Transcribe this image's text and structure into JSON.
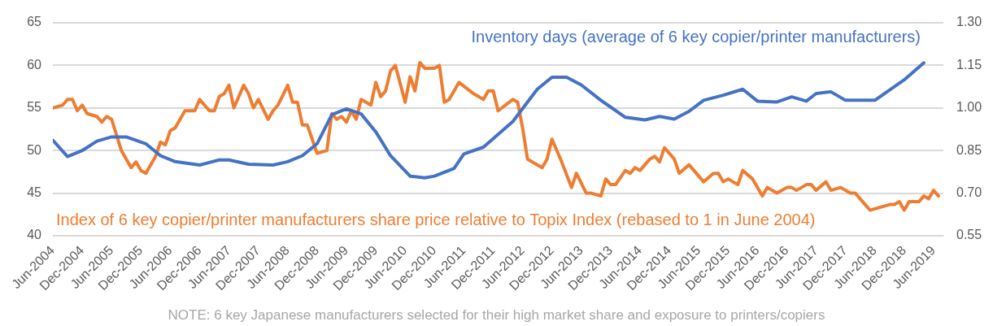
{
  "chart_data": {
    "type": "line",
    "xlim": [
      "2004-06",
      "2019-08"
    ],
    "xticks": [
      {
        "value": "2004-06",
        "label": "Jun-2004"
      },
      {
        "value": "2004-12",
        "label": "Dec-2004"
      },
      {
        "value": "2005-06",
        "label": "Jun-2005"
      },
      {
        "value": "2005-12",
        "label": "Dec-2005"
      },
      {
        "value": "2006-06",
        "label": "Jun-2006"
      },
      {
        "value": "2006-12",
        "label": "Dec-2006"
      },
      {
        "value": "2007-06",
        "label": "Jun-2007"
      },
      {
        "value": "2007-12",
        "label": "Dec-2007"
      },
      {
        "value": "2008-06",
        "label": "Jun-2008"
      },
      {
        "value": "2008-12",
        "label": "Dec-2008"
      },
      {
        "value": "2009-06",
        "label": "Jun-2009"
      },
      {
        "value": "2009-12",
        "label": "Dec-2009"
      },
      {
        "value": "2010-06",
        "label": "Jun-2010"
      },
      {
        "value": "2010-12",
        "label": "Dec-2010"
      },
      {
        "value": "2011-06",
        "label": "Jun-2011"
      },
      {
        "value": "2011-12",
        "label": "Dec-2011"
      },
      {
        "value": "2012-06",
        "label": "Jun-2012"
      },
      {
        "value": "2012-12",
        "label": "Dec-2012"
      },
      {
        "value": "2013-06",
        "label": "Jun-2013"
      },
      {
        "value": "2013-12",
        "label": "Dec-2013"
      },
      {
        "value": "2014-06",
        "label": "Jun-2014"
      },
      {
        "value": "2014-12",
        "label": "Dec-2014"
      },
      {
        "value": "2015-06",
        "label": "Jun-2015"
      },
      {
        "value": "2015-12",
        "label": "Dec-2015"
      },
      {
        "value": "2016-06",
        "label": "Jun-2016"
      },
      {
        "value": "2016-12",
        "label": "Dec-2016"
      },
      {
        "value": "2017-06",
        "label": "Jun-2017"
      },
      {
        "value": "2017-12",
        "label": "Dec-2017"
      },
      {
        "value": "2018-06",
        "label": "Jun-2018"
      },
      {
        "value": "2018-12",
        "label": "Dec-2018"
      },
      {
        "value": "2019-06",
        "label": "Jun-2019"
      }
    ],
    "ylim": [
      40,
      65
    ],
    "yticks": [
      40,
      45,
      50,
      55,
      60,
      65
    ],
    "y2lim": [
      0.55,
      1.3
    ],
    "y2ticks": [
      0.55,
      {
        "value": 0.7,
        "label": "0.70"
      },
      0.85,
      {
        "value": 1,
        "label": "1.00"
      },
      1.15,
      {
        "value": 1.3,
        "label": "1.30"
      }
    ],
    "grid": "y",
    "legend": false,
    "marker": "none",
    "line_style": "solid",
    "annotations": [
      "NOTE: 6 key Japanese manufacturers selected for their high market share and exposure to printers/copiers"
    ],
    "series": [
      {
        "name": "Inventory days (average of 6 key copier/printer manufacturers)",
        "color": "#4472c4",
        "x": [
          "2004-06",
          "2004-09",
          "2004-12",
          "2005-03",
          "2005-06",
          "2005-09",
          "2006-01",
          "2006-04",
          "2006-07",
          "2006-12",
          "2007-04",
          "2007-06",
          "2007-10",
          "2008-03",
          "2008-06",
          "2008-09",
          "2008-12",
          "2009-03",
          "2009-06",
          "2009-09",
          "2009-12",
          "2010-03",
          "2010-07",
          "2010-10",
          "2010-12",
          "2011-04",
          "2011-06",
          "2011-10",
          "2012-01",
          "2012-04",
          "2012-09",
          "2012-12",
          "2013-03",
          "2013-06",
          "2013-10",
          "2013-12",
          "2014-03",
          "2014-07",
          "2014-10",
          "2015-01",
          "2015-04",
          "2015-07",
          "2015-11",
          "2016-03",
          "2016-06",
          "2016-10",
          "2017-01",
          "2017-04",
          "2017-06",
          "2017-09",
          "2017-12",
          "2018-06",
          "2018-12",
          "2019-04"
        ],
        "values": [
          51.2,
          49.3,
          50.0,
          51.1,
          51.6,
          51.6,
          50.8,
          49.4,
          48.7,
          48.3,
          48.9,
          48.9,
          48.4,
          48.3,
          48.7,
          49.4,
          50.8,
          54.2,
          54.9,
          54.3,
          52.2,
          49.4,
          47.0,
          46.8,
          47.0,
          47.9,
          49.6,
          50.4,
          51.9,
          53.4,
          57.2,
          58.6,
          58.6,
          57.7,
          55.9,
          55.1,
          53.9,
          53.6,
          54.0,
          53.7,
          54.6,
          55.9,
          56.5,
          57.2,
          55.8,
          55.7,
          56.3,
          55.8,
          56.7,
          56.9,
          55.9,
          55.9,
          58.3,
          60.3
        ]
      },
      {
        "name": "Index of 6 key copier/printer manufacturers share price relative to Topix Index (rebased to 1 in June 2004)",
        "color": "#ed7d31",
        "axis": "y2",
        "x": [
          "2004-06",
          "2004-08",
          "2004-09",
          "2004-10",
          "2004-11",
          "2004-12",
          "2005-01",
          "2005-03",
          "2005-04",
          "2005-05",
          "2005-06",
          "2005-08",
          "2005-10",
          "2005-11",
          "2005-12",
          "2006-01",
          "2006-02",
          "2006-03",
          "2006-04",
          "2006-05",
          "2006-06",
          "2006-07",
          "2006-09",
          "2006-11",
          "2006-12",
          "2007-02",
          "2007-03",
          "2007-04",
          "2007-05",
          "2007-06",
          "2007-07",
          "2007-09",
          "2007-10",
          "2007-11",
          "2007-12",
          "2008-02",
          "2008-03",
          "2008-04",
          "2008-06",
          "2008-07",
          "2008-08",
          "2008-09",
          "2008-10",
          "2008-12",
          "2009-02",
          "2009-03",
          "2009-04",
          "2009-05",
          "2009-06",
          "2009-07",
          "2009-08",
          "2009-09",
          "2009-11",
          "2009-12",
          "2010-01",
          "2010-02",
          "2010-03",
          "2010-04",
          "2010-06",
          "2010-07",
          "2010-08",
          "2010-09",
          "2010-10",
          "2010-12",
          "2011-01",
          "2011-02",
          "2011-03",
          "2011-05",
          "2011-08",
          "2011-10",
          "2011-11",
          "2011-12",
          "2012-01",
          "2012-04",
          "2012-05",
          "2012-06",
          "2012-07",
          "2012-08",
          "2012-10",
          "2012-11",
          "2012-12",
          "2013-02",
          "2013-04",
          "2013-05",
          "2013-07",
          "2013-08",
          "2013-10",
          "2013-11",
          "2013-12",
          "2014-01",
          "2014-03",
          "2014-04",
          "2014-05",
          "2014-06",
          "2014-08",
          "2014-09",
          "2014-10",
          "2014-11",
          "2015-01",
          "2015-02",
          "2015-04",
          "2015-05",
          "2015-07",
          "2015-09",
          "2015-10",
          "2015-11",
          "2015-12",
          "2016-02",
          "2016-03",
          "2016-05",
          "2016-06",
          "2016-07",
          "2016-08",
          "2016-10",
          "2016-12",
          "2017-01",
          "2017-02",
          "2017-04",
          "2017-05",
          "2017-06",
          "2017-08",
          "2017-09",
          "2017-11",
          "2018-01",
          "2018-02",
          "2018-04",
          "2018-05",
          "2018-07",
          "2018-09",
          "2018-10",
          "2018-11",
          "2018-12",
          "2019-01",
          "2019-03",
          "2019-04",
          "2019-05",
          "2019-06",
          "2019-07"
        ],
        "values": [
          1.0,
          1.01,
          1.03,
          1.03,
          0.99,
          1.01,
          0.98,
          0.97,
          0.95,
          0.97,
          0.96,
          0.85,
          0.79,
          0.81,
          0.78,
          0.77,
          0.8,
          0.83,
          0.88,
          0.87,
          0.92,
          0.93,
          0.99,
          0.99,
          1.03,
          0.99,
          0.99,
          1.04,
          1.05,
          1.08,
          1.0,
          1.08,
          1.05,
          1.0,
          1.03,
          0.96,
          0.99,
          1.01,
          1.08,
          1.02,
          1.02,
          0.94,
          0.94,
          0.84,
          0.85,
          0.98,
          0.96,
          0.97,
          0.95,
          0.99,
          0.96,
          1.03,
          1.01,
          1.09,
          1.04,
          1.06,
          1.13,
          1.15,
          1.02,
          1.11,
          1.06,
          1.16,
          1.14,
          1.14,
          1.15,
          1.02,
          1.03,
          1.09,
          1.05,
          1.03,
          1.06,
          1.06,
          0.99,
          1.03,
          1.02,
          0.93,
          0.82,
          0.81,
          0.79,
          0.82,
          0.89,
          0.81,
          0.72,
          0.77,
          0.7,
          0.7,
          0.69,
          0.75,
          0.73,
          0.73,
          0.78,
          0.77,
          0.79,
          0.78,
          0.82,
          0.83,
          0.81,
          0.86,
          0.82,
          0.77,
          0.8,
          0.78,
          0.74,
          0.77,
          0.77,
          0.74,
          0.75,
          0.73,
          0.78,
          0.75,
          0.72,
          0.69,
          0.72,
          0.7,
          0.72,
          0.72,
          0.71,
          0.73,
          0.73,
          0.71,
          0.74,
          0.71,
          0.72,
          0.7,
          0.7,
          0.66,
          0.64,
          0.65,
          0.66,
          0.66,
          0.67,
          0.64,
          0.67,
          0.67,
          0.69,
          0.68,
          0.71,
          0.69
        ]
      }
    ]
  }
}
